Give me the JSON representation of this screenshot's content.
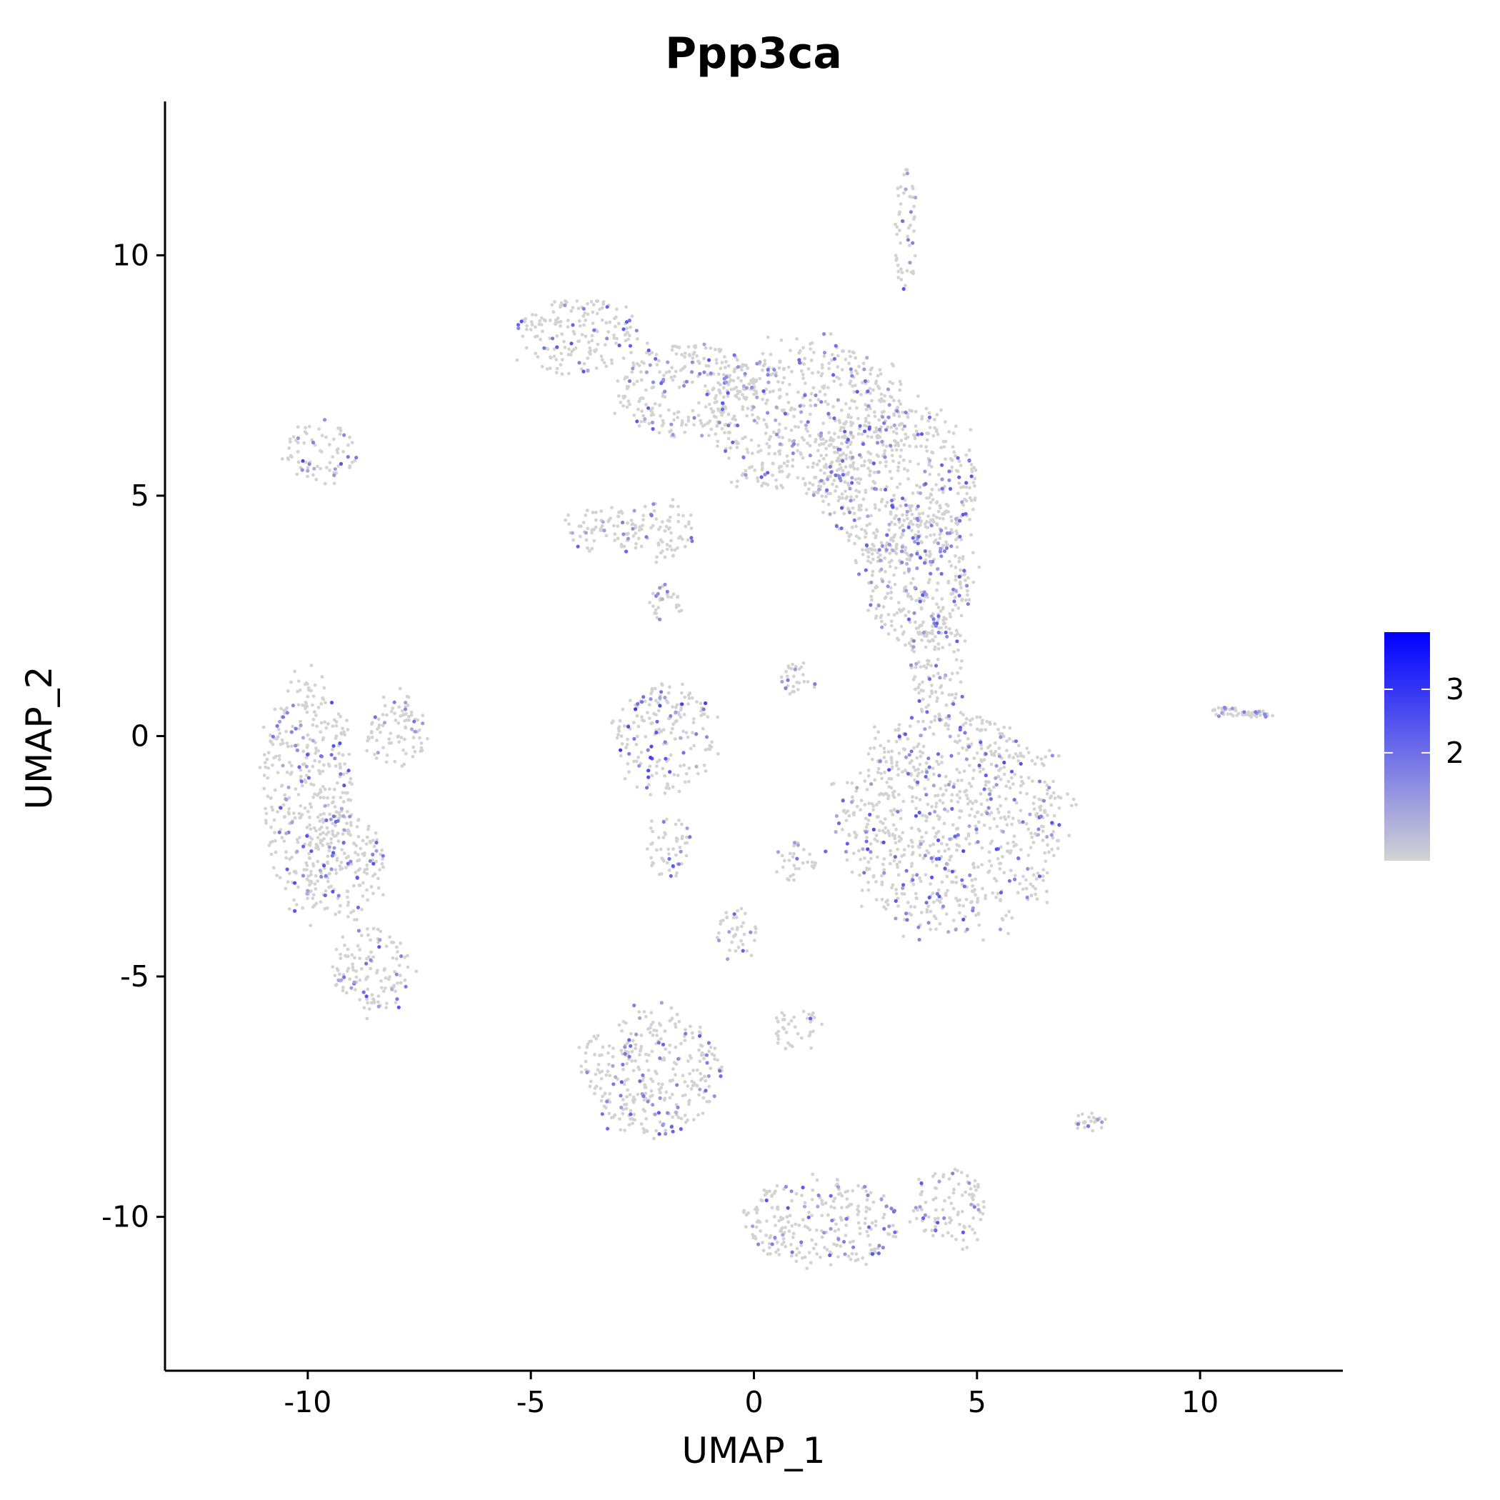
{
  "chart_data": {
    "type": "scatter",
    "title": "Ppp3ca",
    "xlabel": "UMAP_1",
    "ylabel": "UMAP_2",
    "xlim": [
      -13.2,
      13.2
    ],
    "ylim": [
      -13.2,
      13.2
    ],
    "x_ticks": [
      -10,
      -5,
      0,
      5,
      10
    ],
    "y_ticks": [
      -10,
      -5,
      0,
      5,
      10
    ],
    "x_tick_labels": [
      "-10",
      "-5",
      "0",
      "5",
      "10"
    ],
    "y_tick_labels": [
      "-10",
      "-5",
      "0",
      "5",
      "10"
    ],
    "grid": false,
    "colorscale": {
      "low_color": "#d3d3d3",
      "high_color": "#0000ff",
      "range": [
        0.3,
        3.9
      ],
      "ticks": [
        2,
        3
      ],
      "tick_labels": [
        "2",
        "3"
      ],
      "position": "right"
    },
    "clusters": [
      {
        "cx": -9.7,
        "cy": 5.9,
        "rx": 0.8,
        "ry": 0.6,
        "expr": 1.4
      },
      {
        "cx": -10.0,
        "cy": -1.2,
        "rx": 1.0,
        "ry": 2.4,
        "expr": 1.2
      },
      {
        "cx": -9.2,
        "cy": -2.6,
        "rx": 0.9,
        "ry": 1.2,
        "expr": 1.1
      },
      {
        "cx": -8.0,
        "cy": 0.1,
        "rx": 0.7,
        "ry": 0.8,
        "expr": 1.1
      },
      {
        "cx": -8.6,
        "cy": -4.9,
        "rx": 0.9,
        "ry": 0.9,
        "expr": 1.2
      },
      {
        "cx": -4.0,
        "cy": 8.3,
        "rx": 1.4,
        "ry": 0.8,
        "expr": 1.1
      },
      {
        "cx": -1.5,
        "cy": 7.2,
        "rx": 1.6,
        "ry": 1.0,
        "expr": 0.9
      },
      {
        "cx": 1.2,
        "cy": 6.6,
        "rx": 2.2,
        "ry": 1.6,
        "expr": 0.9
      },
      {
        "cx": 3.2,
        "cy": 5.3,
        "rx": 1.8,
        "ry": 1.7,
        "expr": 1.0
      },
      {
        "cx": 3.7,
        "cy": 3.3,
        "rx": 1.2,
        "ry": 1.5,
        "expr": 1.0
      },
      {
        "cx": 4.1,
        "cy": 1.5,
        "rx": 0.6,
        "ry": 1.2,
        "expr": 1.0
      },
      {
        "cx": 3.4,
        "cy": 10.5,
        "rx": 0.25,
        "ry": 1.3,
        "expr": 1.1
      },
      {
        "cx": -3.4,
        "cy": 4.3,
        "rx": 0.8,
        "ry": 0.5,
        "expr": 0.8
      },
      {
        "cx": -2.1,
        "cy": 4.3,
        "rx": 0.8,
        "ry": 0.6,
        "expr": 0.8
      },
      {
        "cx": -2.0,
        "cy": 2.8,
        "rx": 0.4,
        "ry": 0.4,
        "expr": 0.6
      },
      {
        "cx": -2.0,
        "cy": 0.0,
        "rx": 1.1,
        "ry": 1.1,
        "expr": 1.6
      },
      {
        "cx": -1.9,
        "cy": -2.3,
        "rx": 0.5,
        "ry": 0.7,
        "expr": 1.0
      },
      {
        "cx": 1.0,
        "cy": 1.2,
        "rx": 0.4,
        "ry": 0.4,
        "expr": 0.6
      },
      {
        "cx": 0.9,
        "cy": -2.6,
        "rx": 0.5,
        "ry": 0.4,
        "expr": 0.8
      },
      {
        "cx": 4.4,
        "cy": -1.8,
        "rx": 2.5,
        "ry": 2.3,
        "expr": 1.2
      },
      {
        "cx": -0.4,
        "cy": -4.1,
        "rx": 0.5,
        "ry": 0.5,
        "expr": 0.8
      },
      {
        "cx": -2.3,
        "cy": -7.0,
        "rx": 1.6,
        "ry": 1.3,
        "expr": 0.9
      },
      {
        "cx": 1.0,
        "cy": -6.1,
        "rx": 0.5,
        "ry": 0.5,
        "expr": 0.9
      },
      {
        "cx": 1.5,
        "cy": -10.1,
        "rx": 1.8,
        "ry": 0.9,
        "expr": 1.0
      },
      {
        "cx": 4.4,
        "cy": -9.8,
        "rx": 0.8,
        "ry": 0.8,
        "expr": 1.0
      },
      {
        "cx": 7.5,
        "cy": -8.0,
        "rx": 0.4,
        "ry": 0.2,
        "expr": 0.9
      },
      {
        "cx": 10.6,
        "cy": 0.5,
        "rx": 0.4,
        "ry": 0.1,
        "expr": 0.7
      },
      {
        "cx": 11.3,
        "cy": 0.45,
        "rx": 0.3,
        "ry": 0.07,
        "expr": 0.7
      }
    ]
  }
}
